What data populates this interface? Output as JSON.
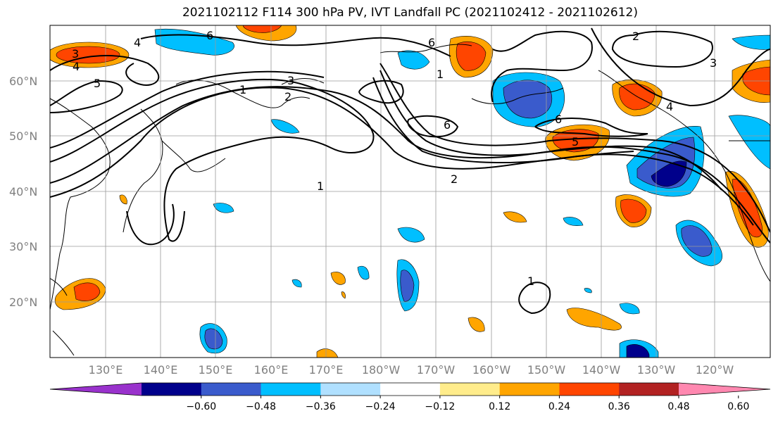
{
  "title": "2021102112 F114 300 hPa PV, IVT Landfall PC (2021102412 - 2021102612)",
  "map": {
    "lat_labels": [
      "60°N",
      "50°N",
      "40°N",
      "30°N",
      "20°N"
    ],
    "lon_labels": [
      "130°E",
      "140°E",
      "150°E",
      "160°E",
      "170°E",
      "180°W",
      "170°W",
      "160°W",
      "150°W",
      "140°W",
      "130°W",
      "120°W"
    ],
    "contour_labels": [
      "6",
      "4",
      "3",
      "4",
      "5",
      "3",
      "1",
      "2",
      "6",
      "6",
      "5",
      "2",
      "1",
      "2",
      "6",
      "4",
      "3",
      "1",
      "1"
    ],
    "colors": {
      "grid": "#9a9a9a",
      "contour": "#000000",
      "coast": "#000000"
    }
  },
  "colorbar": {
    "tick_labels": [
      "−0.60",
      "−0.48",
      "−0.36",
      "−0.24",
      "−0.12",
      "0.12",
      "0.24",
      "0.36",
      "0.48",
      "0.60"
    ],
    "colors": [
      "#9932cc",
      "#00008b",
      "#3a5bcc",
      "#00bfff",
      "#b0e0ff",
      "#ffffff",
      "#ffec8b",
      "#ffa500",
      "#ff4500",
      "#b22222",
      "#ff88b0"
    ]
  }
}
